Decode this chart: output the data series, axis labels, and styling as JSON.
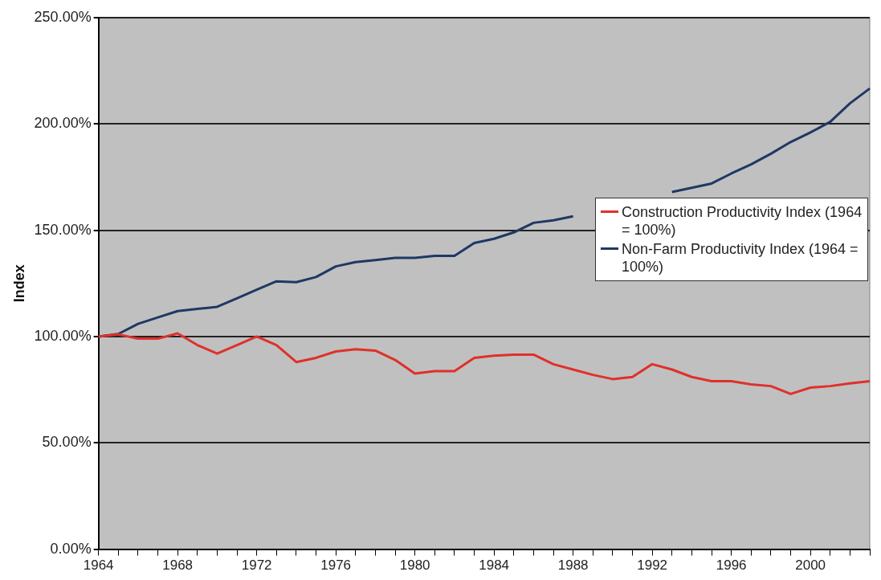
{
  "chart_data": {
    "type": "line",
    "ylabel": "Index",
    "categories": [
      "1964",
      null,
      null,
      null,
      "1968",
      null,
      null,
      null,
      "1972",
      null,
      null,
      null,
      "1976",
      null,
      null,
      null,
      "1980",
      null,
      null,
      null,
      "1984",
      null,
      null,
      null,
      "1988",
      null,
      null,
      null,
      "1992",
      null,
      null,
      null,
      "1996",
      null,
      null,
      null,
      "2000",
      null,
      null,
      null
    ],
    "series": [
      {
        "name": "Construction Productivity Index (1964 = 100%)",
        "color": "#e0302a",
        "values": [
          100,
          101,
          99,
          99,
          101.5,
          96,
          92,
          96,
          100,
          96,
          88,
          90,
          93,
          94,
          93.4,
          89,
          82.6,
          83.7,
          83.7,
          90,
          91,
          91.5,
          91.5,
          87,
          84.5,
          82,
          80,
          81,
          87,
          84.5,
          81,
          79,
          79,
          77.5,
          76.7,
          73,
          76,
          76.7,
          78,
          79
        ]
      },
      {
        "name": "Non-Farm Productivity Index (1964 = 100%)",
        "color": "#1f3864",
        "values": [
          100,
          101.2,
          106,
          109,
          112,
          113,
          114,
          118,
          122,
          126,
          125.6,
          128,
          133,
          135,
          136,
          137,
          137,
          138,
          138,
          144,
          146,
          149,
          153.5,
          154.7,
          156.6,
          null,
          null,
          null,
          null,
          168,
          170,
          172,
          176.7,
          181,
          186,
          191.5,
          196,
          201,
          209.7,
          216.7
        ]
      }
    ],
    "ylim": [
      0,
      250
    ],
    "yticks": [
      {
        "value": 0,
        "label": "0.00%"
      },
      {
        "value": 50,
        "label": "50.00%"
      },
      {
        "value": 100,
        "label": "100.00%"
      },
      {
        "value": 150,
        "label": "150.00%"
      },
      {
        "value": 200,
        "label": "200.00%"
      },
      {
        "value": 250,
        "label": "250.00%"
      }
    ],
    "grid": "y",
    "legend": "right",
    "marker": "none",
    "line_style": "solid"
  }
}
